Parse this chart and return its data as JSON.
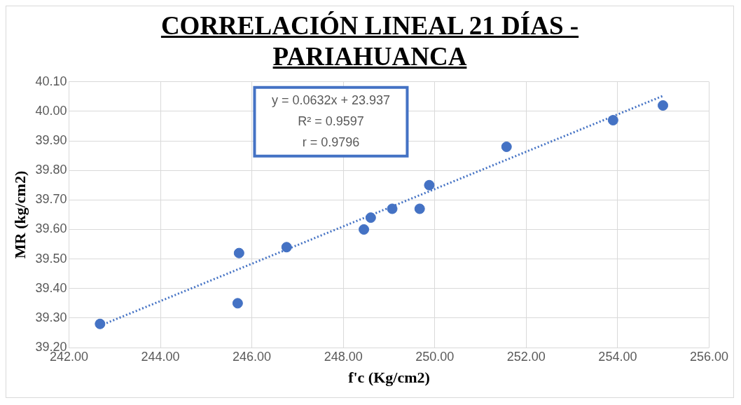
{
  "chart_data": {
    "type": "scatter",
    "title": "CORRELACIÓN LINEAL 21 DÍAS - PARIAHUANCA",
    "xlabel": "f'c (Kg/cm2)",
    "ylabel": "MR (kg/cm2)",
    "series": [
      {
        "color": "#4472c4",
        "marker": "circle",
        "x": [
          242.68,
          245.69,
          245.72,
          246.76,
          248.45,
          248.6,
          249.07,
          249.67,
          249.88,
          251.57,
          253.9,
          254.99
        ],
        "values": [
          39.28,
          39.35,
          39.52,
          39.54,
          39.6,
          39.64,
          39.67,
          39.67,
          39.75,
          39.88,
          39.97,
          40.02
        ]
      },
      {
        "type": "line",
        "color": "#4472c4",
        "line_style": "dotted",
        "marker": "none",
        "x": [
          242.68,
          255.0
        ],
        "values": [
          39.274,
          40.053
        ]
      }
    ],
    "xlim": [
      242,
      256
    ],
    "xticks": [
      {
        "value": 242,
        "label": "242.00"
      },
      {
        "value": 244,
        "label": "244.00"
      },
      {
        "value": 246,
        "label": "246.00"
      },
      {
        "value": 248,
        "label": "248.00"
      },
      {
        "value": 250,
        "label": "250.00"
      },
      {
        "value": 252,
        "label": "252.00"
      },
      {
        "value": 254,
        "label": "254.00"
      },
      {
        "value": 256,
        "label": "256.00"
      }
    ],
    "ylim": [
      39.2,
      40.1
    ],
    "yticks": [
      {
        "value": 39.2,
        "label": "39.20"
      },
      {
        "value": 39.3,
        "label": "39.30"
      },
      {
        "value": 39.4,
        "label": "39.40"
      },
      {
        "value": 39.5,
        "label": "39.50"
      },
      {
        "value": 39.6,
        "label": "39.60"
      },
      {
        "value": 39.7,
        "label": "39.70"
      },
      {
        "value": 39.8,
        "label": "39.80"
      },
      {
        "value": 39.9,
        "label": "39.90"
      },
      {
        "value": 40.0,
        "label": "40.00"
      },
      {
        "value": 40.1,
        "label": "40.10"
      }
    ],
    "annotations": [
      "y = 0.0632x + 23.937",
      "R² = 0.9597",
      "r = 0.9796"
    ],
    "grid": true,
    "legend": false
  }
}
